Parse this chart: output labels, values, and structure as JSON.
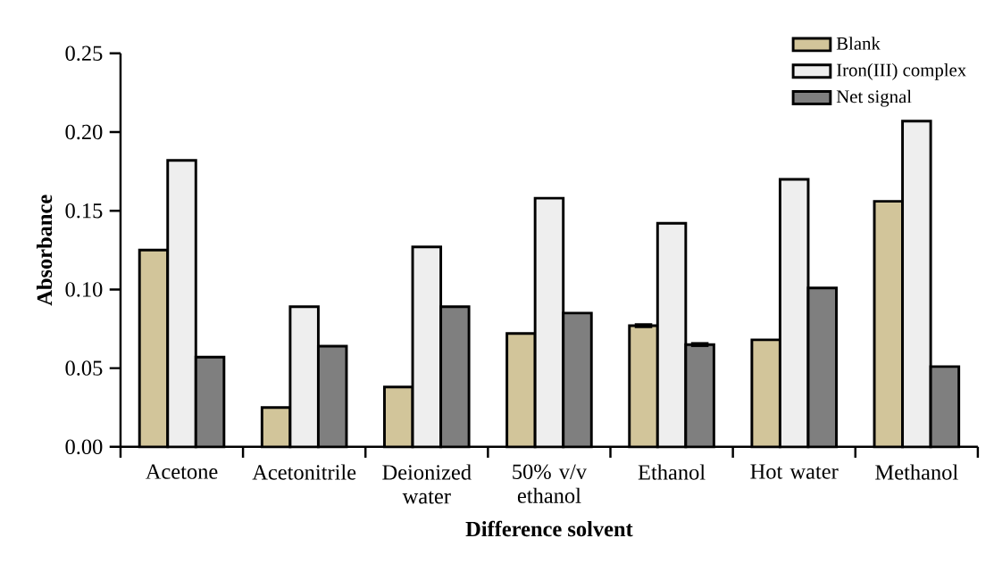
{
  "chart_data": {
    "type": "bar",
    "xlabel": "Difference solvent",
    "ylabel": "Absorbance",
    "categories": [
      "Acetone",
      "Acetonitrile",
      "Deionized water",
      "50% v/v ethanol",
      "Ethanol",
      "Hot water",
      "Methanol"
    ],
    "series": [
      {
        "name": "Blank",
        "color": "#d2c59a",
        "values": [
          0.125,
          0.025,
          0.038,
          0.072,
          0.077,
          0.068,
          0.156
        ],
        "errors": [
          null,
          null,
          null,
          null,
          0.001,
          null,
          null
        ]
      },
      {
        "name": "Iron(III) complex",
        "color": "#eeeeee",
        "values": [
          0.182,
          0.089,
          0.127,
          0.158,
          0.142,
          0.17,
          0.207
        ]
      },
      {
        "name": "Net signal",
        "color": "#7f7f7f",
        "values": [
          0.057,
          0.064,
          0.089,
          0.085,
          0.065,
          0.101,
          0.051
        ],
        "errors": [
          null,
          null,
          null,
          null,
          0.001,
          null,
          null
        ]
      }
    ],
    "ylim": [
      0,
      0.25
    ],
    "yticks": [
      {
        "value": 0,
        "label": "0.00"
      },
      {
        "value": 0.05,
        "label": "0.05"
      },
      {
        "value": 0.1,
        "label": "0.10"
      },
      {
        "value": 0.15,
        "label": "0.15"
      },
      {
        "value": 0.2,
        "label": "0.20"
      },
      {
        "value": 0.25,
        "label": "0.25"
      }
    ],
    "legend": "top right",
    "grid": false
  }
}
